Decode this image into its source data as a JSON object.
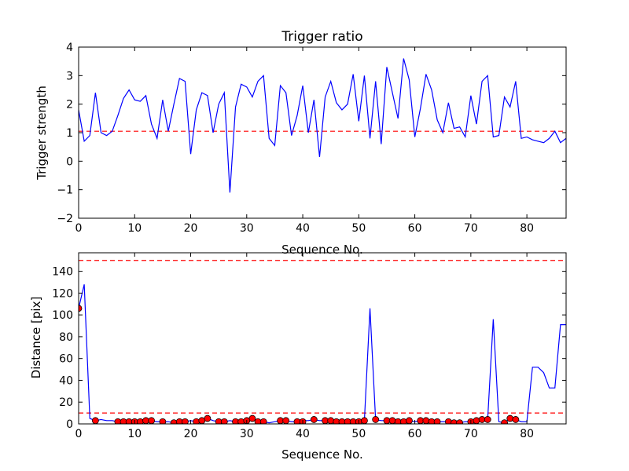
{
  "chart_data": [
    {
      "type": "line",
      "title": "Trigger ratio",
      "xlabel": "Sequence No.",
      "ylabel": "Trigger strength",
      "xlim": [
        0,
        87
      ],
      "ylim": [
        -2,
        4
      ],
      "xticks": [
        0,
        10,
        20,
        30,
        40,
        50,
        60,
        70,
        80
      ],
      "yticks": [
        -2,
        -1,
        0,
        1,
        2,
        3,
        4
      ],
      "grid": false,
      "threshold_lines": [
        1.05
      ],
      "colors": {
        "line": "#0000ff",
        "threshold": "#ff0000"
      },
      "series": [
        {
          "x": [
            0,
            1,
            2,
            3,
            4,
            5,
            6,
            7,
            8,
            9,
            10,
            11,
            12,
            13,
            14,
            15,
            16,
            17,
            18,
            19,
            20,
            21,
            22,
            23,
            24,
            25,
            26,
            27,
            28,
            29,
            30,
            31,
            32,
            33,
            34,
            35,
            36,
            37,
            38,
            39,
            40,
            41,
            42,
            43,
            44,
            45,
            46,
            47,
            48,
            49,
            50,
            51,
            52,
            53,
            54,
            55,
            56,
            57,
            58,
            59,
            60,
            61,
            62,
            63,
            64,
            65,
            66,
            67,
            68,
            69,
            70,
            71,
            72,
            73,
            74,
            75,
            76,
            77,
            78,
            79,
            80,
            81,
            82,
            83,
            84,
            85,
            86,
            87
          ],
          "y": [
            1.8,
            0.7,
            0.9,
            2.4,
            1.0,
            0.9,
            1.05,
            1.6,
            2.2,
            2.5,
            2.15,
            2.1,
            2.3,
            1.3,
            0.8,
            2.15,
            1.05,
            2.0,
            2.9,
            2.8,
            0.25,
            1.8,
            2.4,
            2.3,
            1.0,
            2.0,
            2.4,
            -1.1,
            1.9,
            2.7,
            2.6,
            2.25,
            2.8,
            3.0,
            0.8,
            0.55,
            2.65,
            2.4,
            0.9,
            1.6,
            2.65,
            1.0,
            2.15,
            0.15,
            2.25,
            2.8,
            2.05,
            1.8,
            2.0,
            3.05,
            1.4,
            3.0,
            0.8,
            2.8,
            0.6,
            3.3,
            2.4,
            1.5,
            3.6,
            2.85,
            0.85,
            1.85,
            3.05,
            2.5,
            1.45,
            1.0,
            2.05,
            1.15,
            1.2,
            0.85,
            2.3,
            1.3,
            2.8,
            3.0,
            0.85,
            0.9,
            2.25,
            1.9,
            2.8,
            0.8,
            0.85,
            0.75,
            0.7,
            0.65,
            0.8,
            1.05,
            0.65,
            0.8
          ]
        }
      ]
    },
    {
      "type": "line",
      "title": "",
      "xlabel": "Sequence No.",
      "ylabel": "Distance [pix]",
      "xlim": [
        0,
        87
      ],
      "ylim": [
        0,
        157
      ],
      "xticks": [
        0,
        10,
        20,
        30,
        40,
        50,
        60,
        70,
        80
      ],
      "yticks": [
        0,
        20,
        40,
        60,
        80,
        100,
        120,
        140
      ],
      "grid": false,
      "threshold_lines": [
        10,
        150
      ],
      "colors": {
        "line": "#0000ff",
        "threshold": "#ff0000",
        "marker": "#ff0000"
      },
      "series": [
        {
          "x": [
            0,
            1,
            2,
            3,
            4,
            5,
            6,
            7,
            8,
            9,
            10,
            11,
            12,
            13,
            14,
            15,
            16,
            17,
            18,
            19,
            20,
            21,
            22,
            23,
            24,
            25,
            26,
            27,
            28,
            29,
            30,
            31,
            32,
            33,
            34,
            35,
            36,
            37,
            38,
            39,
            40,
            41,
            42,
            43,
            44,
            45,
            46,
            47,
            48,
            49,
            50,
            51,
            52,
            53,
            54,
            55,
            56,
            57,
            58,
            59,
            60,
            61,
            62,
            63,
            64,
            65,
            66,
            67,
            68,
            69,
            70,
            71,
            72,
            73,
            74,
            75,
            76,
            77,
            78,
            79,
            80,
            81,
            82,
            83,
            84,
            85,
            86,
            87
          ],
          "y": [
            106,
            128,
            5,
            3,
            4,
            3,
            3,
            2,
            2,
            2,
            2,
            2,
            3,
            3,
            2,
            2,
            2,
            1,
            2,
            2,
            3,
            2,
            3,
            5,
            3,
            2,
            2,
            3,
            2,
            2,
            3,
            5,
            2,
            2,
            1,
            2,
            3,
            3,
            2,
            2,
            3,
            3,
            4,
            3,
            3,
            3,
            2,
            2,
            2,
            2,
            2,
            3,
            106,
            4,
            3,
            3,
            3,
            2,
            2,
            3,
            2,
            3,
            3,
            2,
            2,
            2,
            2,
            1,
            1,
            2,
            2,
            3,
            4,
            4,
            96,
            2,
            1,
            5,
            4,
            2,
            2,
            52,
            52,
            47,
            33,
            33,
            91,
            91
          ]
        },
        {
          "name": "",
          "markers": true,
          "x": [
            0,
            3,
            7,
            8,
            9,
            10,
            11,
            12,
            13,
            15,
            17,
            18,
            19,
            21,
            22,
            23,
            25,
            26,
            28,
            29,
            30,
            31,
            32,
            33,
            36,
            37,
            39,
            40,
            42,
            44,
            45,
            46,
            47,
            48,
            49,
            50,
            51,
            53,
            55,
            56,
            57,
            58,
            59,
            61,
            62,
            63,
            64,
            66,
            67,
            68,
            70,
            71,
            72,
            73,
            76,
            77,
            78
          ],
          "y": [
            106,
            3,
            2,
            2,
            2,
            2,
            2,
            3,
            3,
            2,
            1,
            2,
            2,
            2,
            3,
            5,
            2,
            2,
            2,
            2,
            3,
            5,
            2,
            2,
            3,
            3,
            2,
            2,
            4,
            3,
            3,
            2,
            2,
            2,
            2,
            2,
            3,
            4,
            3,
            3,
            2,
            2,
            3,
            3,
            3,
            2,
            2,
            2,
            1,
            1,
            2,
            3,
            4,
            4,
            1,
            5,
            4
          ]
        }
      ]
    }
  ]
}
